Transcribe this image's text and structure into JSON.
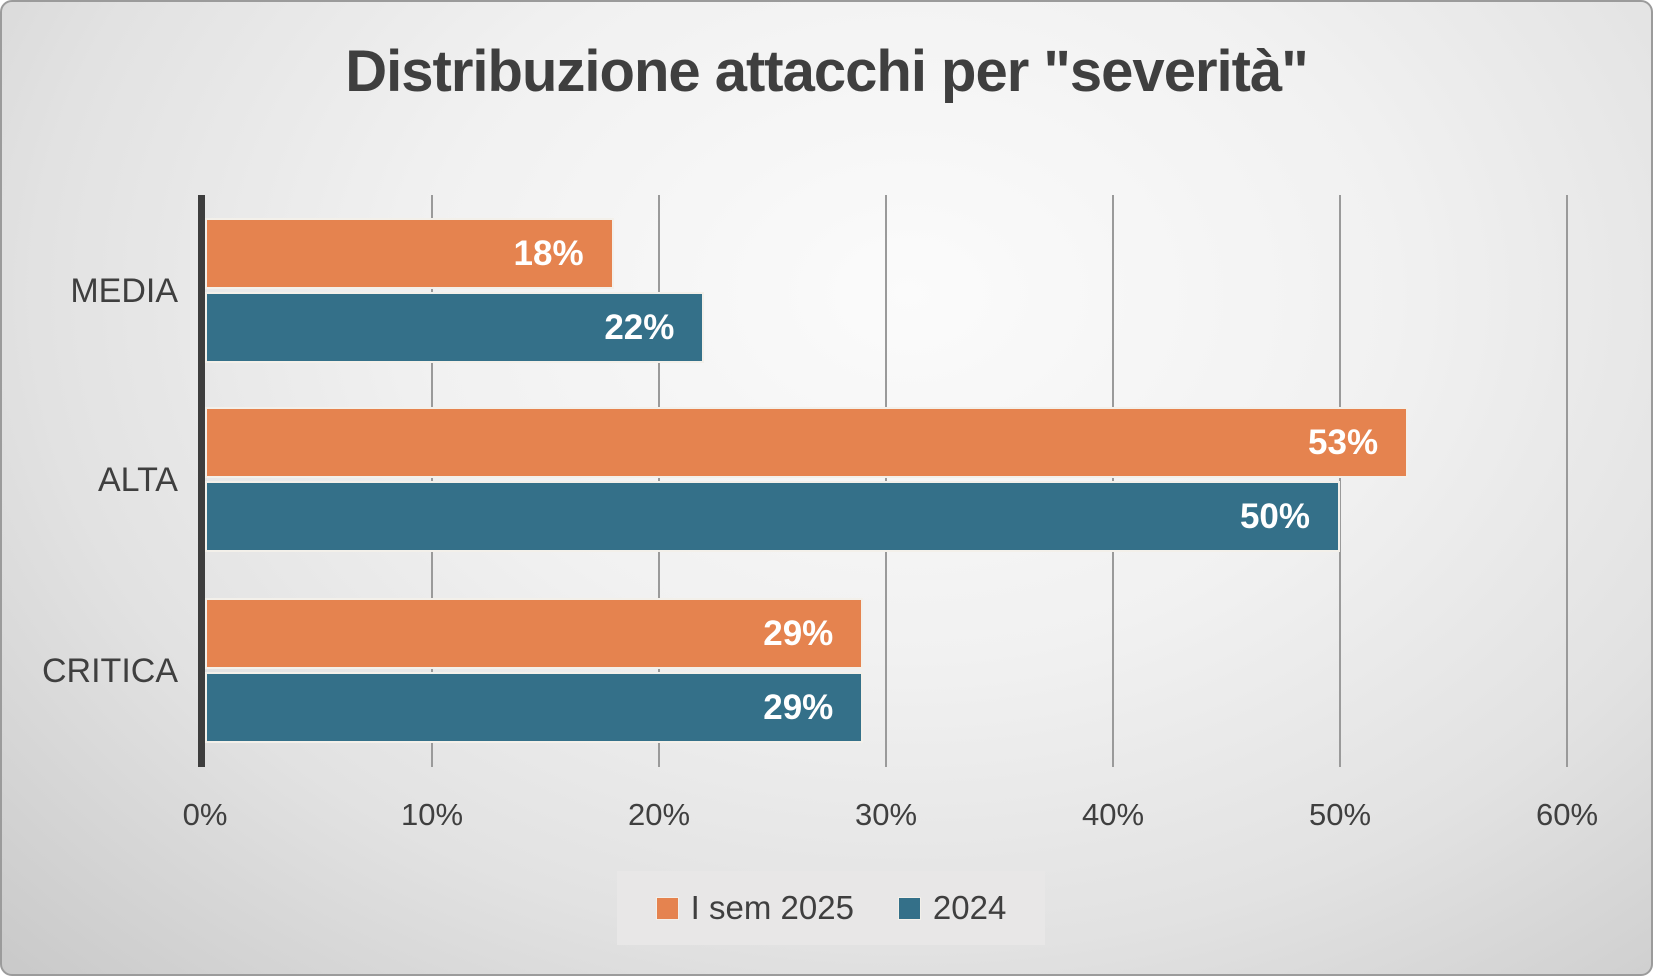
{
  "title": "Distribuzione attacchi per \"severità\"",
  "colors": {
    "series_orange": "#E5834F",
    "series_teal": "#347089",
    "axis": "#3d3d3d",
    "gridline": "#9a9a9a",
    "text": "#3f3f3f",
    "value_label_text": "#ffffff",
    "legend_background": "#e8e7e7"
  },
  "chart_data": {
    "type": "bar",
    "orientation": "horizontal",
    "title": "Distribuzione attacchi per \"severità\"",
    "categories": [
      "MEDIA",
      "ALTA",
      "CRITICA"
    ],
    "series": [
      {
        "name": "I sem 2025",
        "color": "#E5834F",
        "values": [
          18,
          53,
          29
        ]
      },
      {
        "name": "2024",
        "color": "#347089",
        "values": [
          22,
          50,
          29
        ]
      }
    ],
    "value_labels": [
      [
        "18%",
        "53%",
        "29%"
      ],
      [
        "22%",
        "50%",
        "29%"
      ]
    ],
    "xlabel": "",
    "ylabel": "",
    "xlim": [
      0,
      60
    ],
    "x_tick_labels": [
      "0%",
      "10%",
      "20%",
      "30%",
      "40%",
      "50%",
      "60%"
    ],
    "x_tick_step": 10,
    "grid": true,
    "legend_position": "bottom"
  }
}
